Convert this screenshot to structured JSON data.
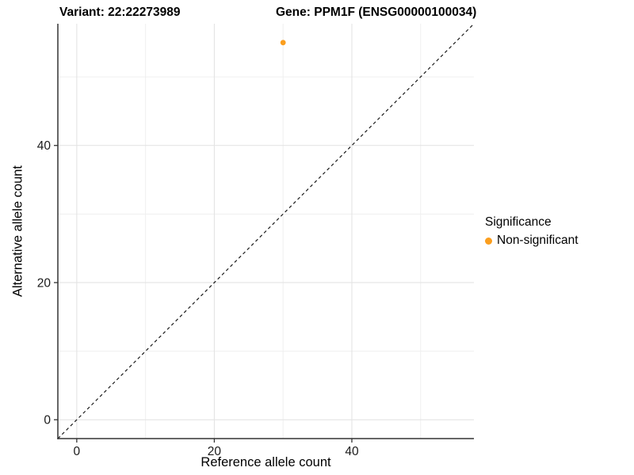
{
  "header": {
    "variant_title": "Variant: 22:22273989",
    "gene_title": "Gene: PPM1F (ENSG00000100034)"
  },
  "chart_data": {
    "type": "scatter",
    "title": "Variant: 22:22273989  Gene: PPM1F (ENSG00000100034)",
    "points": [
      {
        "x": 30,
        "y": 55,
        "series": "Non-significant"
      }
    ],
    "identity_line": {
      "style": "dashed",
      "equation": "y = x",
      "color": "#1A1A1A"
    },
    "axes": {
      "x": {
        "label": "Reference allele count",
        "ticks": [
          0,
          20,
          40
        ],
        "minor_ticks": [
          10,
          30,
          50
        ],
        "lim": [
          -2.75,
          57.75
        ]
      },
      "y": {
        "label": "Alternative allele count",
        "ticks": [
          0,
          20,
          40
        ],
        "minor_ticks": [
          10,
          30,
          50
        ],
        "lim": [
          -2.75,
          57.75
        ]
      }
    },
    "legend": {
      "title": "Significance",
      "position": "right",
      "entries": [
        {
          "label": "Non-significant",
          "color": "#FB9E1E"
        }
      ]
    },
    "grid": true,
    "background": "#FFFFFF"
  },
  "colors": {
    "point": "#FB9E1E",
    "grid_major": "#E4E4E4",
    "grid_minor": "#EFEFEF",
    "axis_line": "#333333",
    "tick": "#333333",
    "text": "#1A1A1A"
  }
}
